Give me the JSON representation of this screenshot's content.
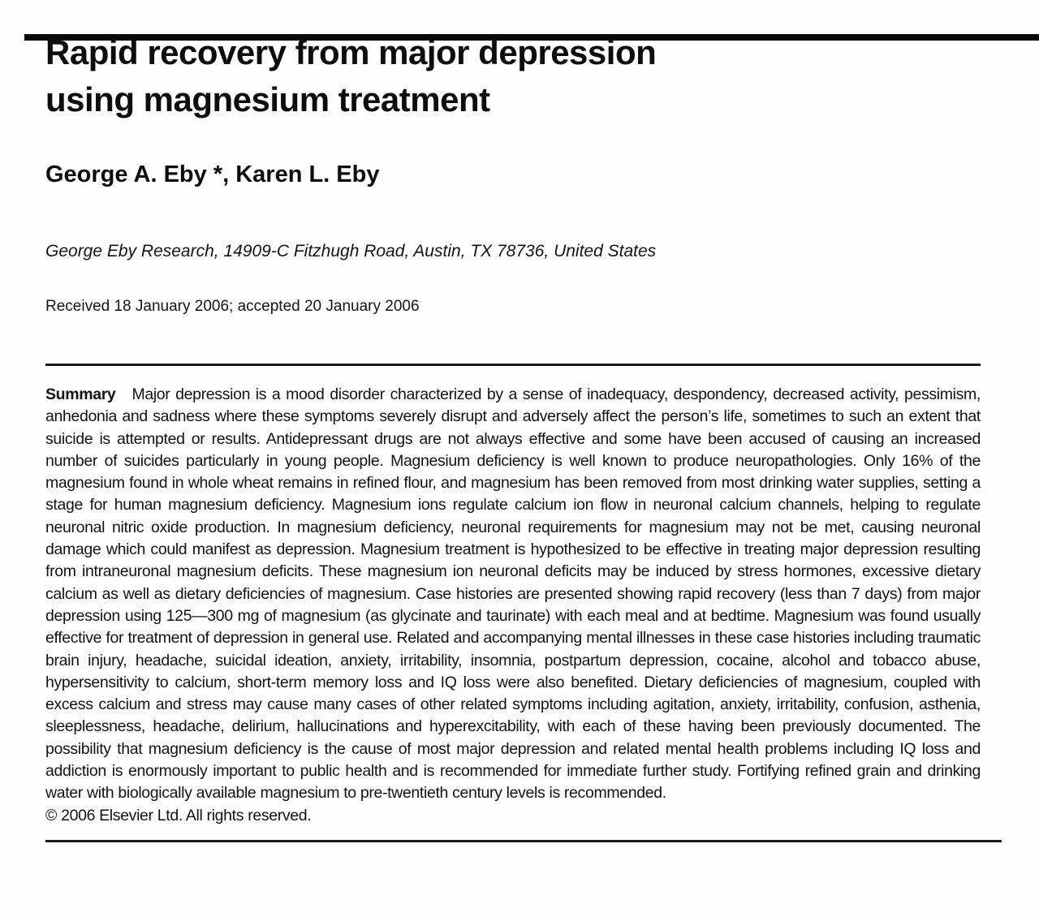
{
  "colors": {
    "ink": "#111111",
    "paper": "#fdfdfd"
  },
  "document": {
    "title_lines": [
      "Rapid recovery from major depression",
      "using magnesium treatment"
    ],
    "authors": "George A. Eby *, Karen L. Eby",
    "affiliation": "George Eby Research, 14909-C Fitzhugh Road, Austin, TX 78736, United States",
    "received": "Received 18 January 2006; accepted 20 January 2006",
    "summary": {
      "label": "Summary",
      "text": "Major depression is a mood disorder characterized by a sense of inadequacy, despondency, decreased activity, pessimism, anhedonia and sadness where these symptoms severely disrupt and adversely affect the person’s life, sometimes to such an extent that suicide is attempted or results. Antidepressant drugs are not always effective and some have been accused of causing an increased number of suicides particularly in young people. Magnesium deficiency is well known to produce neuropathologies. Only 16% of the magnesium found in whole wheat remains in refined flour, and magnesium has been removed from most drinking water supplies, setting a stage for human magnesium deficiency. Magnesium ions regulate calcium ion flow in neuronal calcium channels, helping to regulate neuronal nitric oxide production. In magnesium deficiency, neuronal requirements for magnesium may not be met, causing neuronal damage which could manifest as depression. Magnesium treatment is hypothesized to be effective in treating major depression resulting from intraneuronal magnesium deficits. These magnesium ion neuronal deficits may be induced by stress hormones, excessive dietary calcium as well as dietary deficiencies of magnesium. Case histories are presented showing rapid recovery (less than 7 days) from major depression using 125—300 mg of magnesium (as glycinate and taurinate) with each meal and at bedtime. Magnesium was found usually effective for treatment of depression in general use. Related and accompanying mental illnesses in these case histories including traumatic brain injury, headache, suicidal ideation, anxiety, irritability, insomnia, postpartum depression, cocaine, alcohol and tobacco abuse, hypersensitivity to calcium, short-term memory loss and IQ loss were also benefited. Dietary deficiencies of magnesium, coupled with excess calcium and stress may cause many cases of other related symptoms including agitation, anxiety, irritability, confusion, asthenia, sleeplessness, headache, delirium, hallucinations and hyperexcitability, with each of these having been previously documented. The possibility that magnesium deficiency is the cause of most major depression and related mental health problems including IQ loss and addiction is enormously important to public health and is recommended for immediate further study. Fortifying refined grain and drinking water with biologically available magnesium to pre-twentieth century levels is recommended.",
      "copyright": "© 2006 Elsevier Ltd. All rights reserved."
    }
  }
}
